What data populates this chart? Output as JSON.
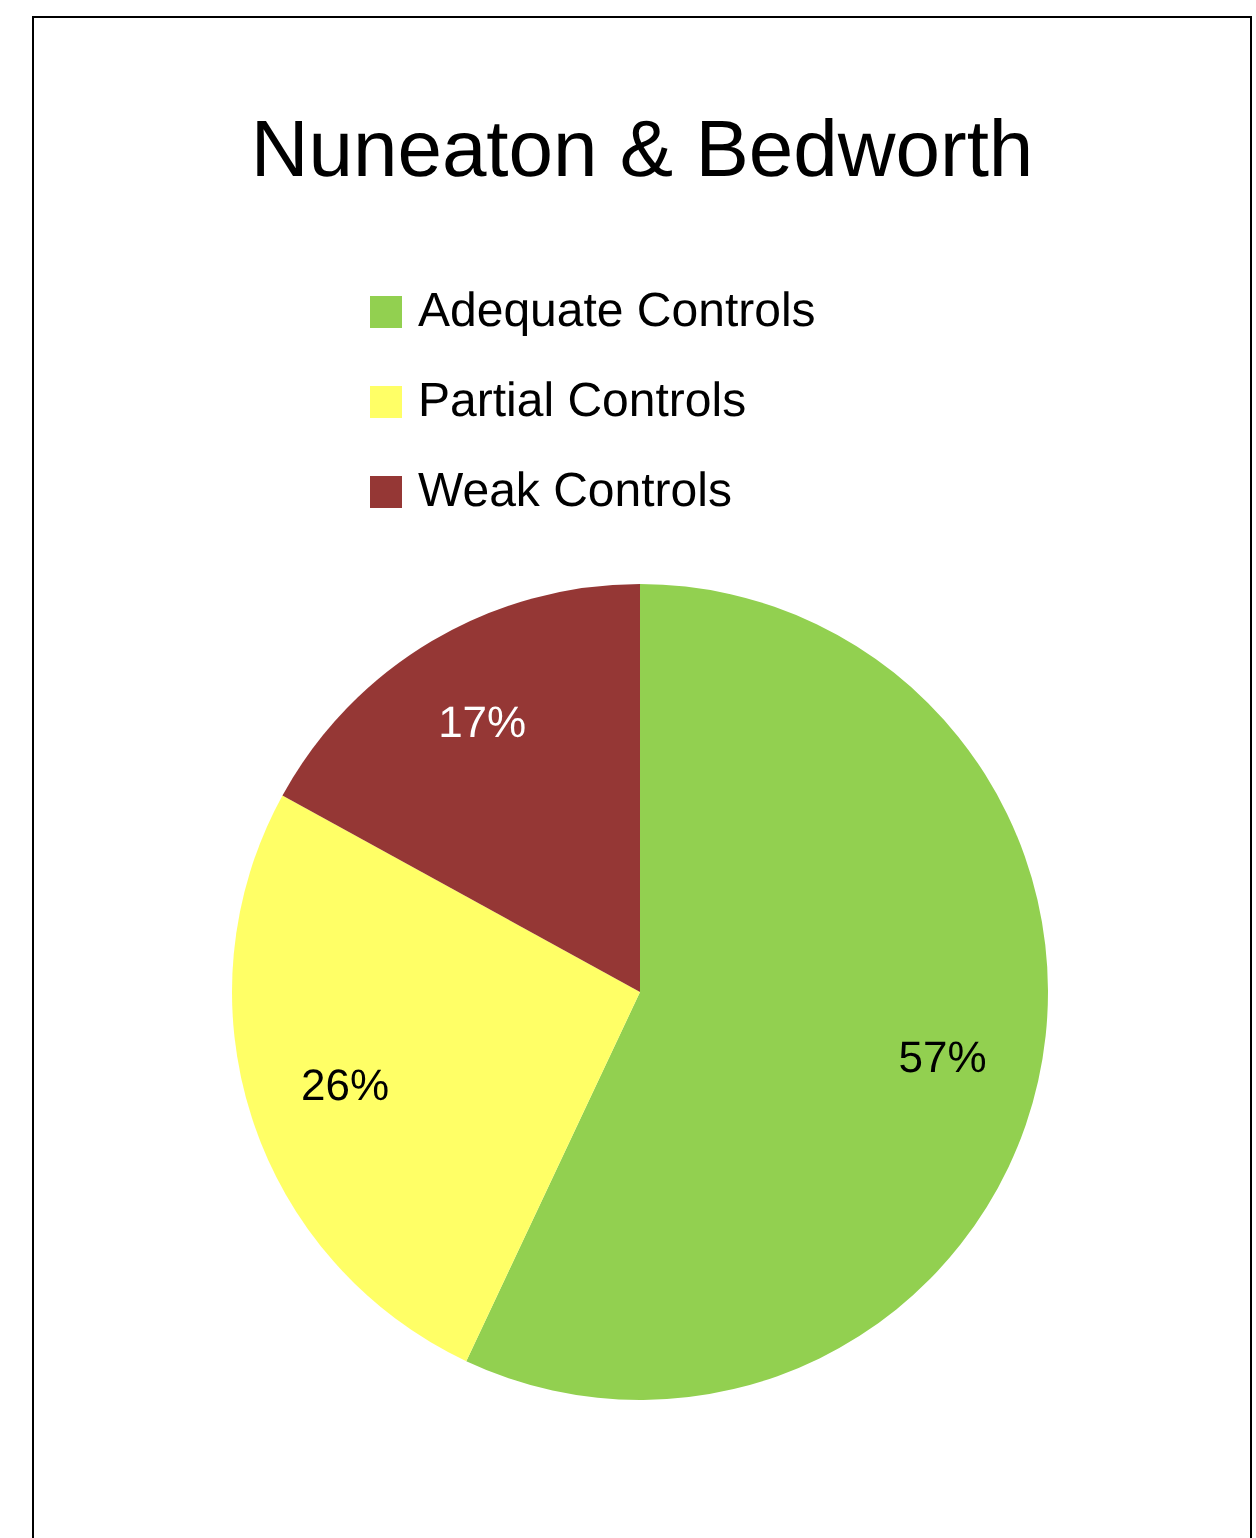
{
  "chart_data": {
    "type": "pie",
    "title": "Nuneaton & Bedworth",
    "categories": [
      "Adequate Controls",
      "Partial Controls",
      "Weak Controls"
    ],
    "values": [
      57,
      26,
      17
    ],
    "colors": [
      "#92d050",
      "#ffff66",
      "#953735"
    ],
    "value_labels": [
      "57%",
      "26%",
      "17%"
    ],
    "legend": "top"
  }
}
